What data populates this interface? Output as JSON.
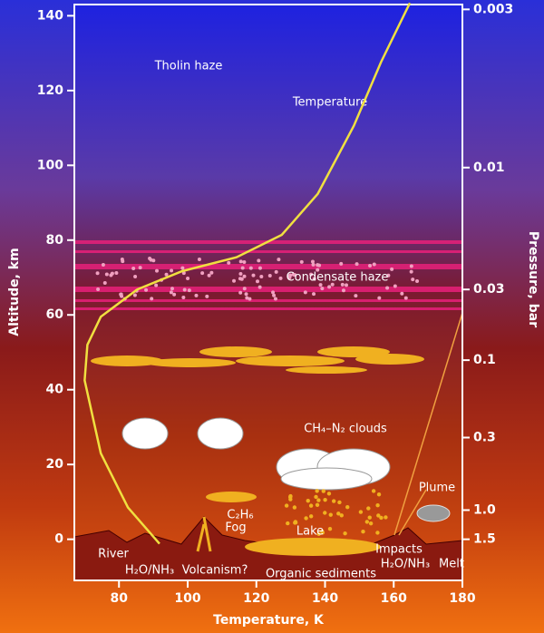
{
  "chart_data": {
    "type": "line",
    "ylabel": "Altitude, km",
    "xlabel": "Temperature, K",
    "y2label": "Pressure, bar",
    "xlim": [
      67,
      180
    ],
    "ylim": [
      -11,
      143
    ],
    "xticks": [
      80,
      100,
      120,
      140,
      160,
      180
    ],
    "yticks": [
      0,
      20,
      40,
      60,
      80,
      100,
      120,
      140
    ],
    "pressure_ticks": [
      {
        "altitude": 141.7,
        "label": "0.003"
      },
      {
        "altitude": 99.4,
        "label": "0.01"
      },
      {
        "altitude": 66.8,
        "label": "0.03"
      },
      {
        "altitude": 47.9,
        "label": "0.1"
      },
      {
        "altitude": 27.2,
        "label": "0.3"
      },
      {
        "altitude": 7.8,
        "label": "1.0"
      },
      {
        "altitude": 0,
        "label": "1.5"
      }
    ],
    "series": [
      {
        "name": "Temperature",
        "color": "#f0e040",
        "x": [
          91.8,
          82.6,
          74.7,
          70,
          70.8,
          74.7,
          85.3,
          98.4,
          114.2,
          127.4,
          137.9,
          148.4,
          156.3,
          164.7
        ],
        "values": [
          -1.2,
          8.5,
          23,
          42.5,
          52,
          59.5,
          66.8,
          71.7,
          75.4,
          81.4,
          92.4,
          110.6,
          127.6,
          143.4
        ]
      }
    ],
    "annotations": {
      "tholin": "Tholin haze",
      "condensate": "Condensate haze",
      "clouds": "CH₄–N₂ clouds",
      "ethane": "C₂H₆",
      "fog": "Fog",
      "lake": "Lake",
      "plume": "Plume",
      "river": "River",
      "water1": "H₂O/NH₃",
      "volcanism": "Volcanism?",
      "sediments": "Organic sediments",
      "impacts": "Impacts",
      "water2": "H₂O/NH₃",
      "melt": "Melt"
    }
  }
}
